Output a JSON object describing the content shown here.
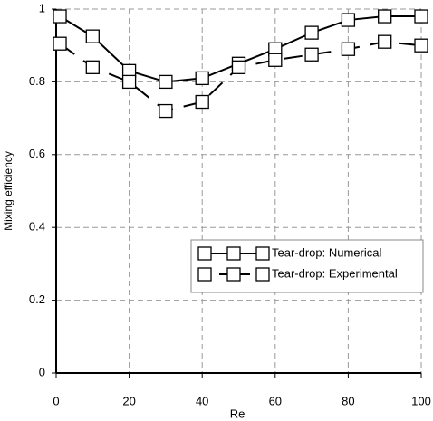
{
  "chart_data": {
    "type": "line",
    "x_label": "Re",
    "y_label": "Mixing efficiency",
    "x": [
      1,
      10,
      20,
      30,
      40,
      50,
      60,
      70,
      80,
      90,
      100
    ],
    "series": [
      {
        "name": "Tear-drop: Numerical",
        "color": "#000000",
        "line_style": "solid",
        "values": [
          0.98,
          0.925,
          0.83,
          0.8,
          0.81,
          0.85,
          0.89,
          0.935,
          0.97,
          0.98,
          0.98
        ]
      },
      {
        "name": "Tear-drop: Experimental",
        "color": "#000000",
        "line_style": "dashed",
        "values": [
          0.905,
          0.84,
          0.8,
          0.72,
          0.745,
          0.84,
          0.86,
          0.875,
          0.89,
          0.91,
          0.9
        ]
      }
    ],
    "xlim": [
      0,
      100
    ],
    "xticks": [
      0,
      20,
      40,
      60,
      80,
      100
    ],
    "ylim": [
      0,
      1
    ],
    "yticks": [
      0,
      0.2,
      0.4,
      0.6,
      0.8,
      1
    ],
    "grid": true,
    "legend": "lower right"
  }
}
